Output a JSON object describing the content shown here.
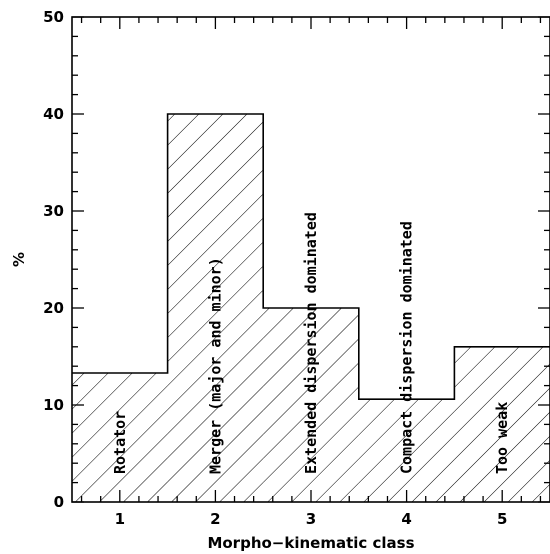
{
  "chart_data": {
    "type": "bar",
    "style": "step-histogram",
    "fill": "diagonal-hatch",
    "categories": [
      "1",
      "2",
      "3",
      "4",
      "5"
    ],
    "values": [
      13.3,
      40,
      20,
      10.6,
      16
    ],
    "bar_labels": [
      "Rotator",
      "Merger (major and minor)",
      "Extended dispersion dominated",
      "Compact dispersion dominated",
      "Too weak"
    ],
    "xlabel": "Morpho−kinematic class",
    "ylabel": "%",
    "xlim": [
      0.5,
      5.5
    ],
    "ylim": [
      0,
      50
    ],
    "y_ticks": [
      "0",
      "10",
      "20",
      "30",
      "40",
      "50"
    ],
    "grid": false,
    "colors": {
      "line": "#000000",
      "hatch": "#000000",
      "background": "#ffffff"
    }
  }
}
